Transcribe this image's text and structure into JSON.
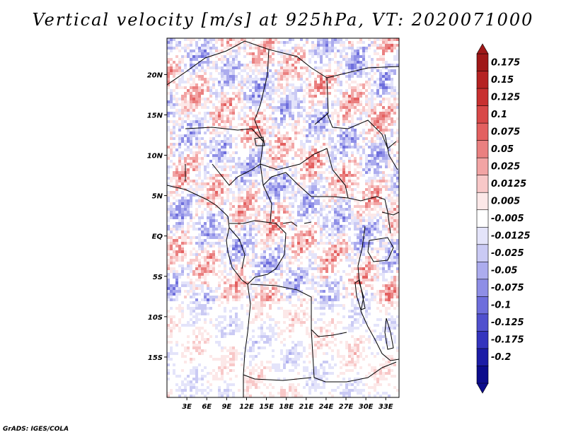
{
  "title": "Vertical velocity [m/s] at 925hPa, VT: 2020071000",
  "credit": "GrADS: IGES/COLA",
  "chart_data": {
    "type": "heatmap",
    "variable": "Vertical velocity",
    "units": "m/s",
    "level": "925hPa",
    "valid_time": "2020071000",
    "lon_range": [
      0,
      35
    ],
    "lat_range": [
      -20,
      24.5
    ],
    "x_ticks": [
      {
        "value": 3,
        "label": "3E"
      },
      {
        "value": 6,
        "label": "6E"
      },
      {
        "value": 9,
        "label": "9E"
      },
      {
        "value": 12,
        "label": "12E"
      },
      {
        "value": 15,
        "label": "15E"
      },
      {
        "value": 18,
        "label": "18E"
      },
      {
        "value": 21,
        "label": "21E"
      },
      {
        "value": 24,
        "label": "24E"
      },
      {
        "value": 27,
        "label": "27E"
      },
      {
        "value": 30,
        "label": "30E"
      },
      {
        "value": 33,
        "label": "33E"
      }
    ],
    "y_ticks": [
      {
        "value": 20,
        "label": "20N"
      },
      {
        "value": 15,
        "label": "15N"
      },
      {
        "value": 10,
        "label": "10N"
      },
      {
        "value": 5,
        "label": "5N"
      },
      {
        "value": 0,
        "label": "EQ"
      },
      {
        "value": -5,
        "label": "5S"
      },
      {
        "value": -10,
        "label": "10S"
      },
      {
        "value": -15,
        "label": "15S"
      }
    ],
    "colorbar": {
      "labels": [
        "0.175",
        "0.15",
        "0.125",
        "0.1",
        "0.075",
        "0.05",
        "0.025",
        "0.0125",
        "0.005",
        "-0.005",
        "-0.0125",
        "-0.025",
        "-0.05",
        "-0.075",
        "-0.1",
        "-0.125",
        "-0.175",
        "-0.2"
      ],
      "colors": [
        "#a01818",
        "#b52222",
        "#c83030",
        "#d84848",
        "#e36060",
        "#ea8080",
        "#f2a4a4",
        "#f8c8c8",
        "#fce8e8",
        "#ffffff",
        "#e4e4fa",
        "#cacaf4",
        "#acacee",
        "#8e8ee6",
        "#6e6edc",
        "#5050ce",
        "#3434be",
        "#1c1ca6",
        "#0c0c8c"
      ]
    }
  }
}
